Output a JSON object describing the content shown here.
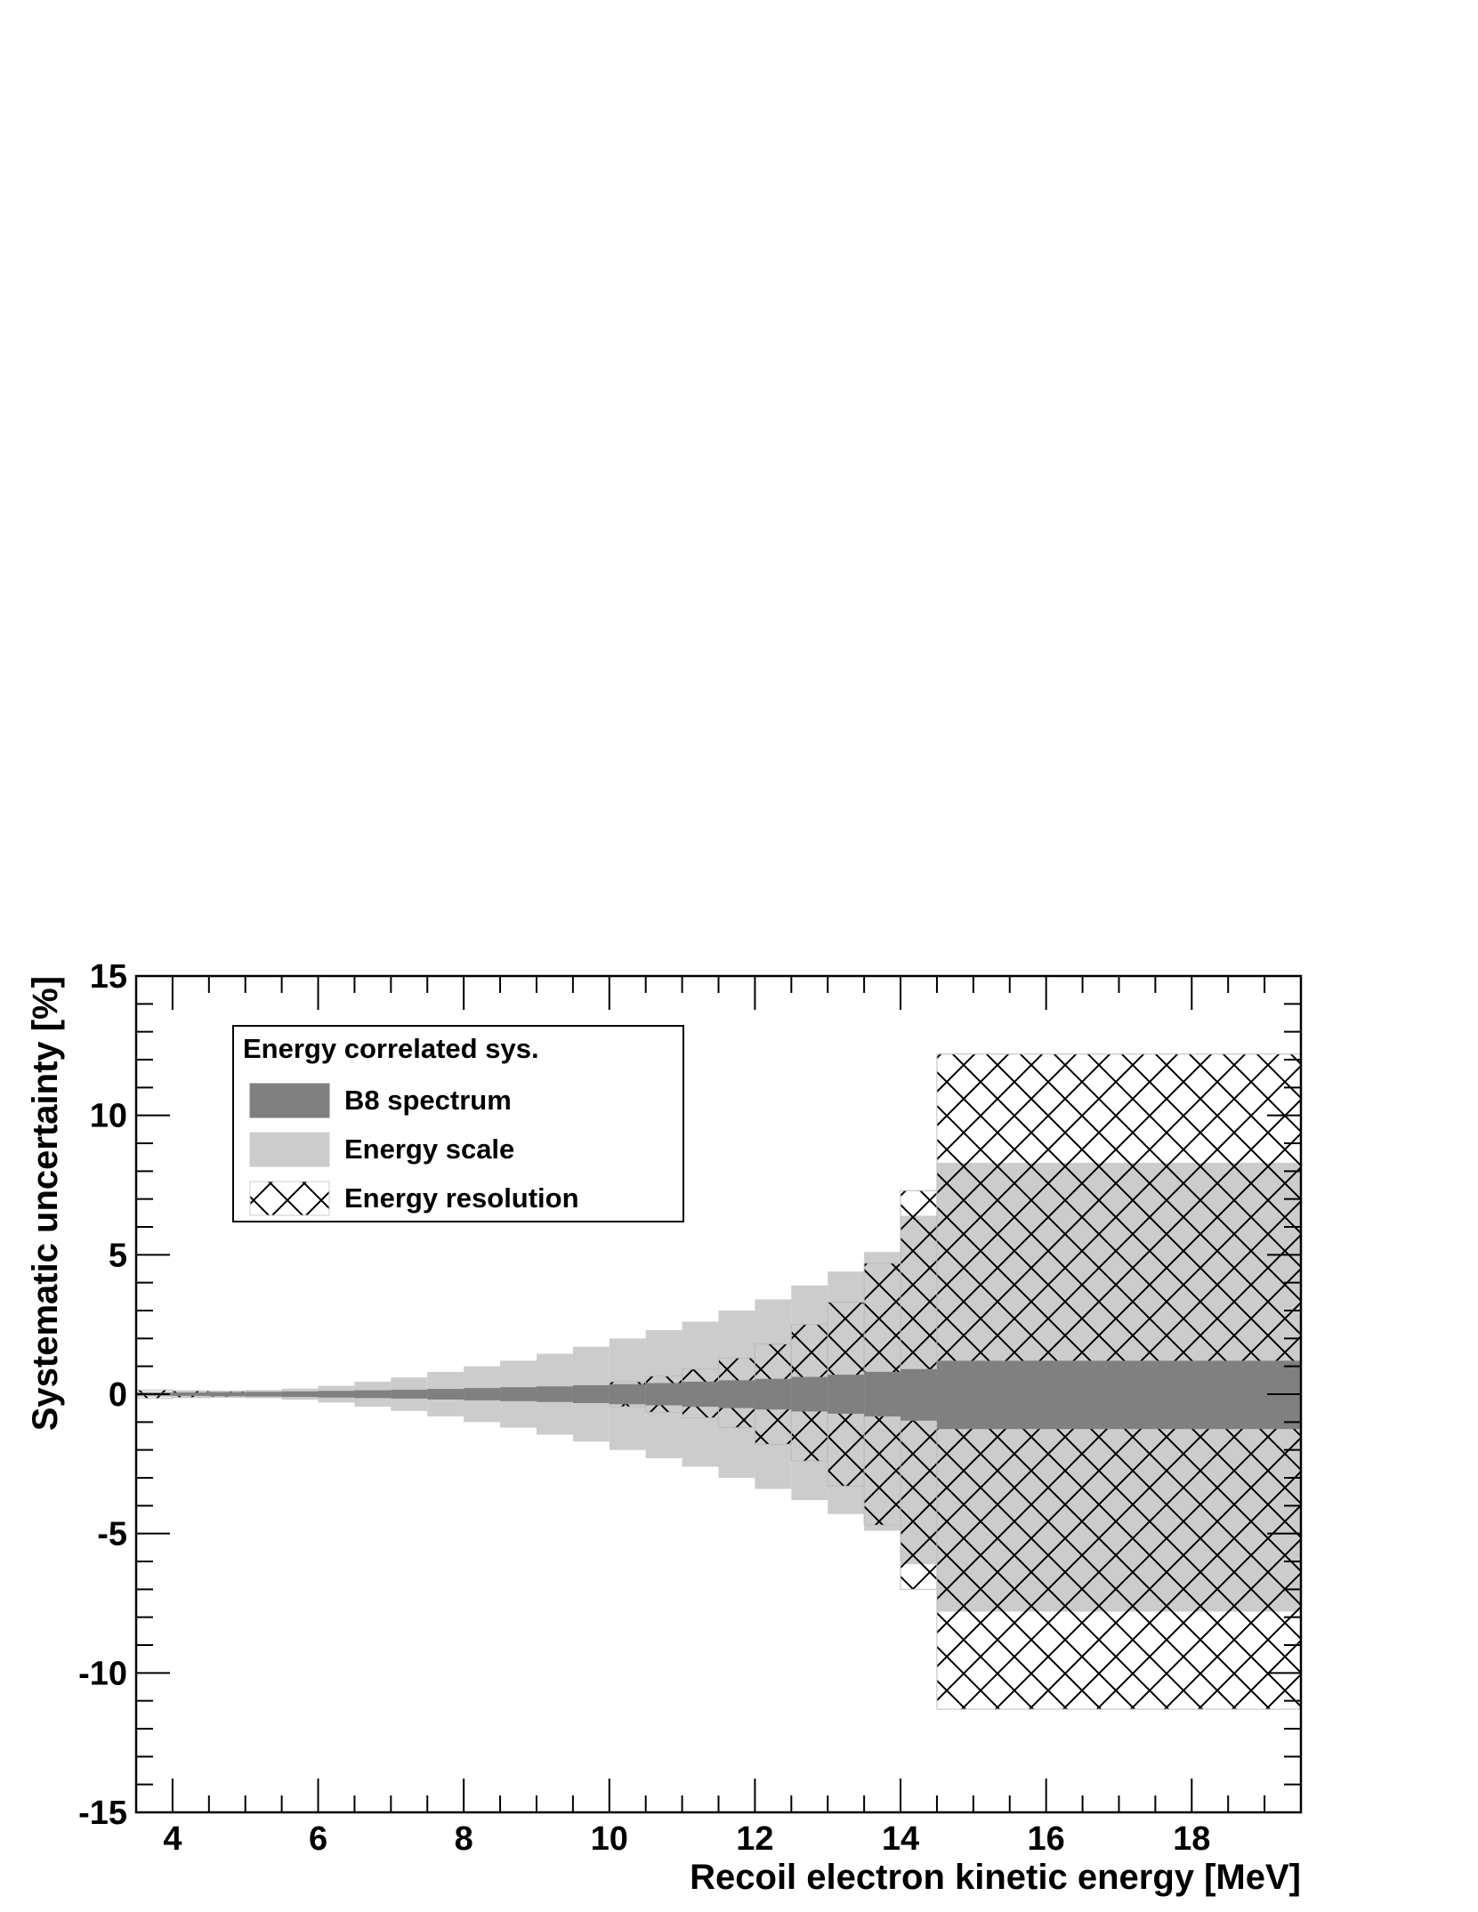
{
  "chart_data": {
    "type": "area",
    "title": "",
    "xlabel": "Recoil electron kinetic energy [MeV]",
    "ylabel": "Systematic uncertainty [%]",
    "xlim": [
      3.5,
      19.5
    ],
    "ylim": [
      -15,
      15
    ],
    "x_ticks": [
      "4",
      "6",
      "8",
      "10",
      "12",
      "14",
      "16",
      "18"
    ],
    "y_ticks": [
      "15",
      "10",
      "5",
      "0",
      "-5",
      "-10",
      "-15"
    ],
    "x_tick_values": [
      4,
      6,
      8,
      10,
      12,
      14,
      16,
      18
    ],
    "y_tick_values": [
      15,
      10,
      5,
      0,
      -5,
      -10,
      -15
    ],
    "grid": false,
    "legend": {
      "title": "Energy correlated sys.",
      "position": "top-left",
      "entries": [
        "B8 spectrum",
        "Energy scale",
        "Energy resolution"
      ]
    },
    "bin_edges": [
      3.5,
      4.0,
      4.5,
      5.0,
      5.5,
      6.0,
      6.5,
      7.0,
      7.5,
      8.0,
      8.5,
      9.0,
      9.5,
      10.0,
      10.5,
      11.0,
      11.5,
      12.0,
      12.5,
      13.0,
      13.5,
      14.0,
      14.5,
      19.5
    ],
    "series": [
      {
        "name": "B8 spectrum",
        "color": "#808080",
        "upper": [
          0.05,
          0.06,
          0.07,
          0.08,
          0.1,
          0.12,
          0.14,
          0.16,
          0.19,
          0.22,
          0.25,
          0.28,
          0.32,
          0.36,
          0.4,
          0.45,
          0.5,
          0.55,
          0.62,
          0.7,
          0.8,
          0.9,
          1.2
        ],
        "lower": [
          -0.05,
          -0.06,
          -0.07,
          -0.08,
          -0.1,
          -0.12,
          -0.14,
          -0.16,
          -0.19,
          -0.22,
          -0.25,
          -0.28,
          -0.32,
          -0.36,
          -0.4,
          -0.45,
          -0.5,
          -0.55,
          -0.62,
          -0.7,
          -0.8,
          -0.95,
          -1.25
        ]
      },
      {
        "name": "Energy scale",
        "color": "#cccccc",
        "upper": [
          0.1,
          0.1,
          0.12,
          0.15,
          0.2,
          0.3,
          0.45,
          0.6,
          0.8,
          1.0,
          1.2,
          1.45,
          1.7,
          2.0,
          2.3,
          2.6,
          3.0,
          3.4,
          3.9,
          4.4,
          5.1,
          6.4,
          8.3
        ],
        "lower": [
          -0.1,
          -0.1,
          -0.12,
          -0.15,
          -0.2,
          -0.3,
          -0.45,
          -0.6,
          -0.8,
          -1.0,
          -1.2,
          -1.45,
          -1.7,
          -2.0,
          -2.3,
          -2.6,
          -3.0,
          -3.4,
          -3.8,
          -4.3,
          -4.9,
          -6.1,
          -7.8
        ]
      },
      {
        "name": "Energy resolution",
        "color": "#000000",
        "upper": [
          0.15,
          0.12,
          0.1,
          0.08,
          0.06,
          0.05,
          0.05,
          0.05,
          0.06,
          0.05,
          0.1,
          0.2,
          0.3,
          0.45,
          0.65,
          0.9,
          1.3,
          1.8,
          2.5,
          3.3,
          4.7,
          7.3,
          12.2
        ],
        "lower": [
          -0.15,
          -0.12,
          -0.1,
          -0.08,
          -0.06,
          -0.05,
          -0.05,
          -0.05,
          -0.06,
          -0.05,
          -0.1,
          -0.2,
          -0.3,
          -0.45,
          -0.65,
          -0.85,
          -1.2,
          -1.8,
          -2.4,
          -3.3,
          -4.7,
          -7.0,
          -11.3
        ]
      }
    ]
  }
}
